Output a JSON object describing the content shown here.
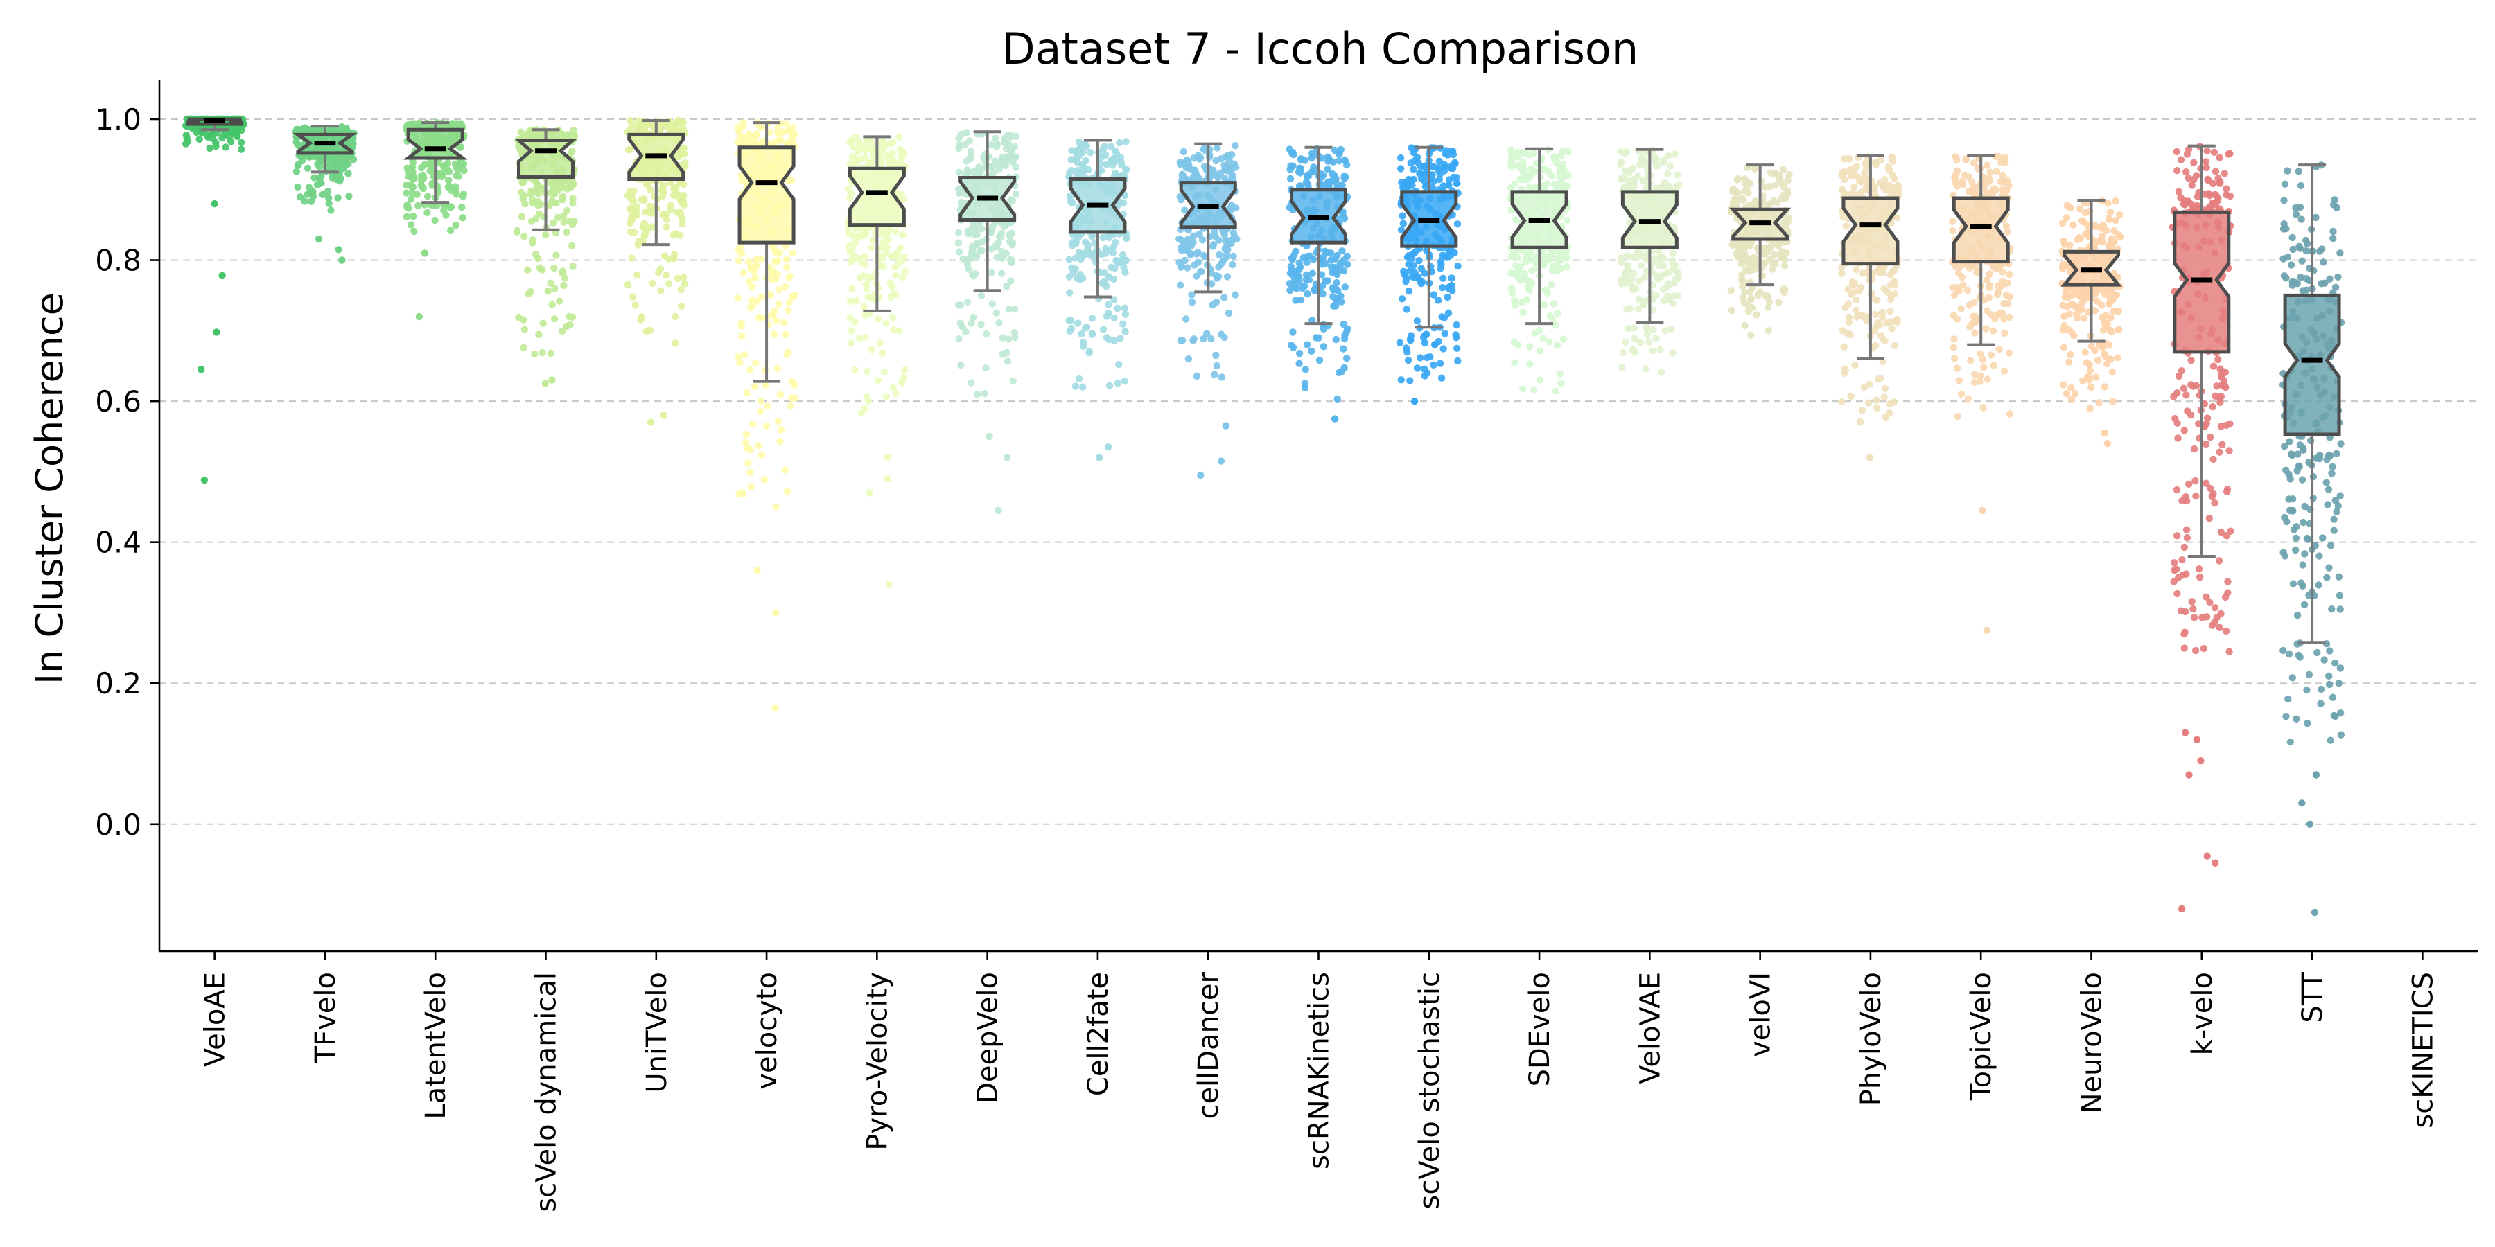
{
  "chart_data": {
    "type": "box-strip",
    "title": "Dataset 7 - Iccoh Comparison",
    "ylabel": "In Cluster Coherence",
    "xlabel": "",
    "ylim": [
      -0.18,
      1.055
    ],
    "yticks": [
      0.0,
      0.2,
      0.4,
      0.6,
      0.8,
      1.0
    ],
    "ytick_labels": [
      "0.0",
      "0.2",
      "0.4",
      "0.6",
      "0.8",
      "1.0"
    ],
    "grid": "horizontal dashed",
    "series": [
      {
        "name": "VeloAE",
        "color": "#45c46a",
        "q1": 0.993,
        "median": 0.998,
        "q3": 1.0,
        "whisker_low": 0.985,
        "whisker_high": 1.0,
        "cluster_low": 0.955,
        "outliers": [
          0.88,
          0.778,
          0.698,
          0.645,
          0.488
        ]
      },
      {
        "name": "TFvelo",
        "color": "#6fd186",
        "q1": 0.952,
        "median": 0.966,
        "q3": 0.978,
        "whisker_low": 0.925,
        "whisker_high": 0.99,
        "cluster_low": 0.86,
        "outliers": [
          0.83,
          0.815,
          0.8
        ]
      },
      {
        "name": "LatentVelo",
        "color": "#8cdc8a",
        "q1": 0.945,
        "median": 0.958,
        "q3": 0.985,
        "whisker_low": 0.882,
        "whisker_high": 0.995,
        "cluster_low": 0.84,
        "outliers": [
          0.81,
          0.72
        ]
      },
      {
        "name": "scVelo dynamical",
        "color": "#c1ea98",
        "q1": 0.918,
        "median": 0.955,
        "q3": 0.97,
        "whisker_low": 0.843,
        "whisker_high": 0.985,
        "cluster_low": 0.66,
        "outliers": [
          0.63,
          0.625
        ]
      },
      {
        "name": "UniTVelo",
        "color": "#dff2a0",
        "q1": 0.915,
        "median": 0.948,
        "q3": 0.978,
        "whisker_low": 0.822,
        "whisker_high": 0.998,
        "cluster_low": 0.65,
        "outliers": [
          0.58,
          0.57
        ]
      },
      {
        "name": "velocyto",
        "color": "#fffbad",
        "q1": 0.825,
        "median": 0.91,
        "q3": 0.96,
        "whisker_low": 0.628,
        "whisker_high": 0.995,
        "cluster_low": 0.44,
        "outliers": [
          0.36,
          0.3,
          0.165
        ]
      },
      {
        "name": "Pyro-Velocity",
        "color": "#ecfcbf",
        "q1": 0.85,
        "median": 0.896,
        "q3": 0.93,
        "whisker_low": 0.728,
        "whisker_high": 0.975,
        "cluster_low": 0.57,
        "outliers": [
          0.52,
          0.49,
          0.47,
          0.34
        ]
      },
      {
        "name": "DeepVelo",
        "color": "#bfe8d5",
        "q1": 0.857,
        "median": 0.888,
        "q3": 0.917,
        "whisker_low": 0.757,
        "whisker_high": 0.982,
        "cluster_low": 0.58,
        "outliers": [
          0.55,
          0.52,
          0.445
        ]
      },
      {
        "name": "Cell2fate",
        "color": "#a3dce3",
        "q1": 0.84,
        "median": 0.878,
        "q3": 0.915,
        "whisker_low": 0.748,
        "whisker_high": 0.97,
        "cluster_low": 0.61,
        "outliers": [
          0.535,
          0.52
        ]
      },
      {
        "name": "cellDancer",
        "color": "#7fc6e8",
        "q1": 0.847,
        "median": 0.876,
        "q3": 0.91,
        "whisker_low": 0.755,
        "whisker_high": 0.965,
        "cluster_low": 0.6,
        "outliers": [
          0.565,
          0.515,
          0.495
        ]
      },
      {
        "name": "scRNAKinetics",
        "color": "#58b4ec",
        "q1": 0.825,
        "median": 0.86,
        "q3": 0.9,
        "whisker_low": 0.71,
        "whisker_high": 0.96,
        "cluster_low": 0.6,
        "outliers": [
          0.575
        ]
      },
      {
        "name": "scVelo stochastic",
        "color": "#38a8f5",
        "q1": 0.82,
        "median": 0.856,
        "q3": 0.897,
        "whisker_low": 0.705,
        "whisker_high": 0.96,
        "cluster_low": 0.62,
        "outliers": [
          0.6
        ]
      },
      {
        "name": "SDEvelo",
        "color": "#d6f7d2",
        "q1": 0.818,
        "median": 0.856,
        "q3": 0.897,
        "whisker_low": 0.71,
        "whisker_high": 0.958,
        "cluster_low": 0.6,
        "outliers": []
      },
      {
        "name": "VeloVAE",
        "color": "#e2f2cf",
        "q1": 0.818,
        "median": 0.855,
        "q3": 0.897,
        "whisker_low": 0.712,
        "whisker_high": 0.957,
        "cluster_low": 0.61,
        "outliers": []
      },
      {
        "name": "veloVI",
        "color": "#e6e5c0",
        "q1": 0.83,
        "median": 0.853,
        "q3": 0.872,
        "whisker_low": 0.765,
        "whisker_high": 0.935,
        "cluster_low": 0.69,
        "outliers": []
      },
      {
        "name": "PhyloVelo",
        "color": "#f1e2bd",
        "q1": 0.795,
        "median": 0.85,
        "q3": 0.888,
        "whisker_low": 0.66,
        "whisker_high": 0.948,
        "cluster_low": 0.56,
        "outliers": [
          0.52
        ]
      },
      {
        "name": "TopicVelo",
        "color": "#f8d8b2",
        "q1": 0.798,
        "median": 0.848,
        "q3": 0.888,
        "whisker_low": 0.68,
        "whisker_high": 0.948,
        "cluster_low": 0.57,
        "outliers": [
          0.445,
          0.275
        ]
      },
      {
        "name": "NeuroVelo",
        "color": "#fdd2ab",
        "q1": 0.765,
        "median": 0.786,
        "q3": 0.812,
        "whisker_low": 0.685,
        "whisker_high": 0.885,
        "cluster_low": 0.58,
        "outliers": [
          0.555,
          0.54
        ]
      },
      {
        "name": "k-velo",
        "color": "#e57f7f",
        "q1": 0.67,
        "median": 0.772,
        "q3": 0.868,
        "whisker_low": 0.38,
        "whisker_high": 0.962,
        "cluster_low": 0.23,
        "outliers": [
          0.13,
          0.12,
          0.09,
          0.07,
          -0.045,
          -0.055,
          -0.12
        ]
      },
      {
        "name": "STT",
        "color": "#6ba3ae",
        "q1": 0.553,
        "median": 0.658,
        "q3": 0.75,
        "whisker_low": 0.258,
        "whisker_high": 0.935,
        "cluster_low": 0.1,
        "outliers": [
          0.07,
          0.03,
          0.0,
          -0.125
        ]
      },
      {
        "name": "scKINETICS",
        "color": "#888888",
        "q1": null,
        "median": null,
        "q3": null,
        "whisker_low": null,
        "whisker_high": null,
        "cluster_low": null,
        "outliers": []
      }
    ]
  }
}
